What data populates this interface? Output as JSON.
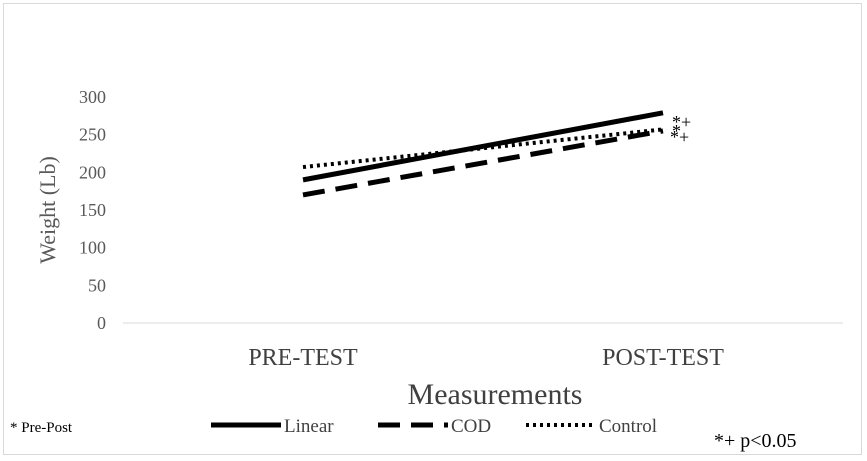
{
  "chart_data": {
    "type": "line",
    "categories": [
      "PRE-TEST",
      "POST-TEST"
    ],
    "series": [
      {
        "name": "Linear",
        "values": [
          190,
          279
        ],
        "color": "#000000",
        "dash": "solid"
      },
      {
        "name": "COD",
        "values": [
          170,
          255
        ],
        "color": "#000000",
        "dash": "dash"
      },
      {
        "name": "Control",
        "values": [
          207,
          257
        ],
        "color": "#000000",
        "dash": "dot"
      }
    ],
    "ylim": [
      0,
      300
    ],
    "yticks": [
      "0",
      "50",
      "100",
      "150",
      "200",
      "250",
      "300"
    ],
    "ylabel": "Weight  (Lb)",
    "xlabel": "Measurements",
    "grid": false,
    "legend_position": "bottom",
    "annotations": {
      "linear_marker": "*+",
      "cod_marker": "*",
      "control_marker": "*+",
      "pre_post_note": "* Pre-Post",
      "significance_note": "*+ p<0.05"
    }
  }
}
